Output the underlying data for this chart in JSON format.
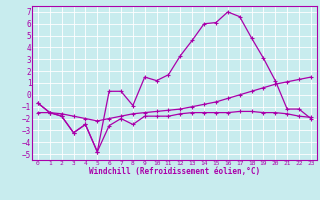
{
  "xlabel": "Windchill (Refroidissement éolien,°C)",
  "background_color": "#c8ecee",
  "grid_color": "#aad8dc",
  "line_color": "#aa00aa",
  "xlim": [
    -0.5,
    23.5
  ],
  "ylim": [
    -5.5,
    7.5
  ],
  "xticks": [
    0,
    1,
    2,
    3,
    4,
    5,
    6,
    7,
    8,
    9,
    10,
    11,
    12,
    13,
    14,
    15,
    16,
    17,
    18,
    19,
    20,
    21,
    22,
    23
  ],
  "yticks": [
    -5,
    -4,
    -3,
    -2,
    -1,
    0,
    1,
    2,
    3,
    4,
    5,
    6,
    7
  ],
  "line1_x": [
    0,
    1,
    2,
    3,
    4,
    5,
    6,
    7,
    8,
    9,
    10,
    11,
    12,
    13,
    14,
    15,
    16,
    17,
    18,
    19,
    20,
    21,
    22,
    23
  ],
  "line1_y": [
    -0.7,
    -1.5,
    -1.8,
    -3.2,
    -2.5,
    -4.8,
    -2.6,
    -2.0,
    -2.5,
    -1.8,
    -1.8,
    -1.8,
    -1.6,
    -1.5,
    -1.5,
    -1.5,
    -1.5,
    -1.4,
    -1.4,
    -1.5,
    -1.5,
    -1.6,
    -1.8,
    -1.9
  ],
  "line2_x": [
    0,
    1,
    2,
    3,
    4,
    5,
    6,
    7,
    8,
    9,
    10,
    11,
    12,
    13,
    14,
    15,
    16,
    17,
    18,
    19,
    20,
    21,
    22,
    23
  ],
  "line2_y": [
    -0.7,
    -1.5,
    -1.8,
    -3.2,
    -2.5,
    -4.8,
    0.3,
    0.3,
    -0.9,
    1.5,
    1.2,
    1.7,
    3.3,
    4.6,
    6.0,
    6.1,
    7.0,
    6.6,
    4.8,
    3.1,
    1.2,
    -1.2,
    -1.2,
    -2.0
  ],
  "line3_x": [
    0,
    1,
    2,
    3,
    4,
    5,
    6,
    7,
    8,
    9,
    10,
    11,
    12,
    13,
    14,
    15,
    16,
    17,
    18,
    19,
    20,
    21,
    22,
    23
  ],
  "line3_y": [
    -1.5,
    -1.5,
    -1.6,
    -1.8,
    -2.0,
    -2.2,
    -2.0,
    -1.8,
    -1.6,
    -1.5,
    -1.4,
    -1.3,
    -1.2,
    -1.0,
    -0.8,
    -0.6,
    -0.3,
    0.0,
    0.3,
    0.6,
    0.9,
    1.1,
    1.3,
    1.5
  ]
}
